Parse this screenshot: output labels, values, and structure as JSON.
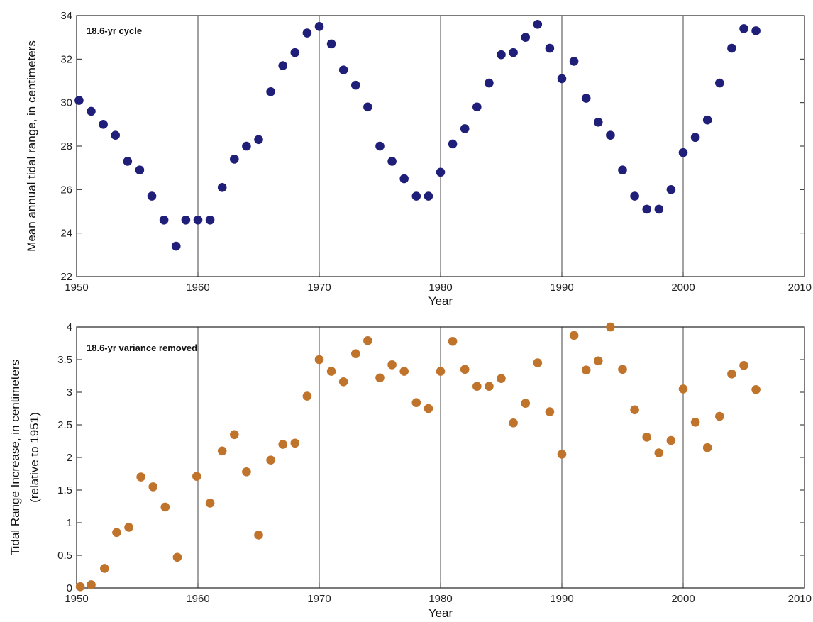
{
  "chart_data": [
    {
      "type": "scatter",
      "annotation": "18.6-yr cycle",
      "xlabel": "Year",
      "ylabel": "Mean annual tidal range, in centimeters",
      "xlim": [
        1950,
        2010
      ],
      "ylim": [
        22,
        34
      ],
      "xticks": [
        1950,
        1960,
        1970,
        1980,
        1990,
        2000,
        2010
      ],
      "yticks": [
        22,
        24,
        26,
        28,
        30,
        32,
        34
      ],
      "ytick_labels": [
        "22",
        "24",
        "26",
        "28",
        "30",
        "32",
        "34"
      ],
      "grid": "vertical",
      "marker_color": "#1f1f7a",
      "x": [
        1950.2,
        1951.2,
        1952.2,
        1953.2,
        1954.2,
        1955.2,
        1956.2,
        1957.2,
        1958.2,
        1959.0,
        1960.0,
        1961.0,
        1962.0,
        1963.0,
        1964.0,
        1965.0,
        1966.0,
        1967.0,
        1968.0,
        1969.0,
        1970.0,
        1971.0,
        1972.0,
        1973.0,
        1974.0,
        1975.0,
        1976.0,
        1977.0,
        1978.0,
        1979.0,
        1980.0,
        1981.0,
        1982.0,
        1983.0,
        1984.0,
        1985.0,
        1986.0,
        1987.0,
        1988.0,
        1989.0,
        1990.0,
        1991.0,
        1992.0,
        1993.0,
        1994.0,
        1995.0,
        1996.0,
        1997.0,
        1998.0,
        1999.0,
        2000.0,
        2001.0,
        2002.0,
        2003.0,
        2004.0,
        2005.0,
        2006.0
      ],
      "y": [
        30.1,
        29.6,
        29.0,
        28.5,
        27.3,
        26.9,
        25.7,
        24.6,
        23.4,
        24.6,
        24.6,
        24.6,
        26.1,
        27.4,
        28.0,
        28.3,
        30.5,
        31.7,
        32.3,
        33.2,
        33.5,
        32.7,
        31.5,
        30.8,
        29.8,
        28.0,
        27.3,
        26.5,
        25.7,
        25.7,
        26.8,
        28.1,
        28.8,
        29.8,
        30.9,
        32.2,
        32.3,
        33.0,
        33.6,
        32.5,
        31.1,
        31.9,
        30.2,
        29.1,
        28.5,
        26.9,
        25.7,
        25.1,
        25.1,
        26.0,
        27.7,
        28.4,
        29.2,
        30.9,
        32.5,
        33.4,
        33.3
      ]
    },
    {
      "type": "scatter",
      "annotation": "18.6-yr variance removed",
      "xlabel": "Year",
      "ylabel": "Tidal Range Increase, in centimeters",
      "ylabel2": "(relative to 1951)",
      "xlim": [
        1950,
        2010
      ],
      "ylim": [
        0,
        4
      ],
      "xticks": [
        1950,
        1960,
        1970,
        1980,
        1990,
        2000,
        2010
      ],
      "yticks": [
        0,
        0.5,
        1,
        1.5,
        2,
        2.5,
        3,
        3.5,
        4
      ],
      "ytick_labels": [
        "0",
        "0.5",
        "1",
        "1.5",
        "2",
        "2.5",
        "3",
        "3.5",
        "4"
      ],
      "grid": "vertical",
      "marker_color": "#c0732a",
      "x": [
        1950.3,
        1951.2,
        1952.3,
        1953.3,
        1954.3,
        1955.3,
        1956.3,
        1957.3,
        1958.3,
        1959.9,
        1961.0,
        1962.0,
        1963.0,
        1964.0,
        1965.0,
        1966.0,
        1967.0,
        1968.0,
        1969.0,
        1970.0,
        1971.0,
        1972.0,
        1973.0,
        1974.0,
        1975.0,
        1976.0,
        1977.0,
        1978.0,
        1979.0,
        1980.0,
        1981.0,
        1982.0,
        1983.0,
        1984.0,
        1985.0,
        1986.0,
        1987.0,
        1988.0,
        1989.0,
        1990.0,
        1991.0,
        1992.0,
        1993.0,
        1994.0,
        1995.0,
        1996.0,
        1997.0,
        1998.0,
        1999.0,
        2000.0,
        2001.0,
        2002.0,
        2003.0,
        2004.0,
        2005.0,
        2006.0
      ],
      "y": [
        0.02,
        0.05,
        0.3,
        0.85,
        0.93,
        1.7,
        1.55,
        1.24,
        0.47,
        1.71,
        1.3,
        2.1,
        2.35,
        1.78,
        0.81,
        1.96,
        2.2,
        2.22,
        2.94,
        3.5,
        3.32,
        3.16,
        3.59,
        3.79,
        3.22,
        3.42,
        3.32,
        2.84,
        2.75,
        3.32,
        3.78,
        3.35,
        3.09,
        3.09,
        3.21,
        2.53,
        2.83,
        3.45,
        2.7,
        2.05,
        3.87,
        3.34,
        3.48,
        4.0,
        3.35,
        2.73,
        2.31,
        2.07,
        2.26,
        3.05,
        2.54,
        2.15,
        2.63,
        3.28,
        3.41,
        3.04
      ]
    }
  ]
}
